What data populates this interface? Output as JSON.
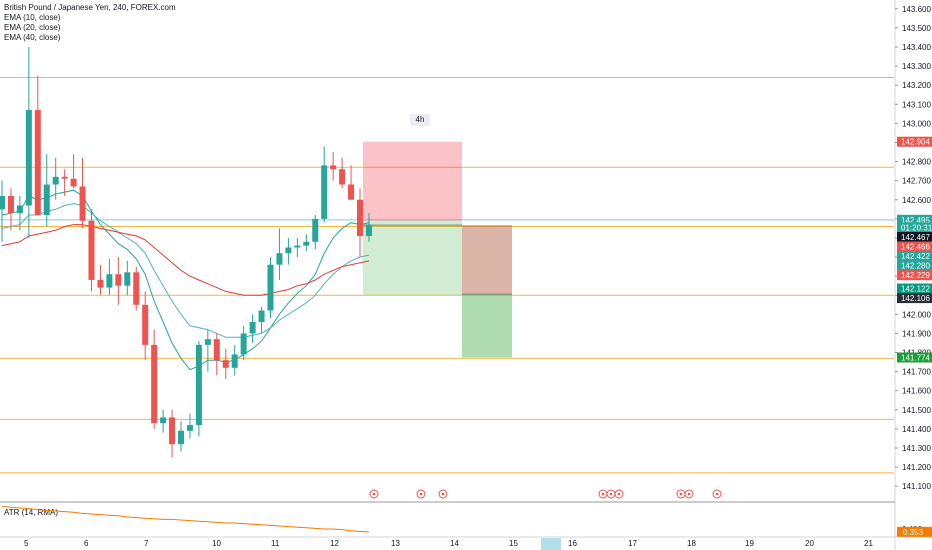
{
  "legend": {
    "title": "British Pound / Japanese Yen, 240, FOREX.com",
    "ema10": "EMA (10, close)",
    "ema20": "EMA (20, close)",
    "ema40": "EMA (40, close)"
  },
  "atr_label": "ATR (14, RMA)",
  "timeframe_badge": "4h",
  "colors": {
    "up": "#26a69a",
    "down": "#ef5350",
    "ema_fast": "#26a69a",
    "ema_slow": "#e53935",
    "hline": "#f6b73c",
    "atr": "#f57c00"
  },
  "chart_data": {
    "type": "candlestick",
    "symbol": "GBPJPY",
    "interval": "240",
    "ylim": [
      141.08,
      143.62
    ],
    "price_ticks": [
      "143.600",
      "143.500",
      "143.400",
      "143.300",
      "143.200",
      "143.100",
      "143.000",
      "142.900",
      "142.800",
      "142.700",
      "142.600",
      "142.500",
      "142.400",
      "142.300",
      "142.200",
      "142.100",
      "142.000",
      "141.900",
      "141.800",
      "141.700",
      "141.600",
      "141.500",
      "141.400",
      "141.300",
      "141.200",
      "141.100"
    ],
    "time_ticks": [
      "5",
      "6",
      "7",
      "10",
      "11",
      "12",
      "13",
      "14",
      "15",
      "16",
      "17",
      "18",
      "19",
      "20",
      "21"
    ],
    "candles": [
      {
        "o": 142.55,
        "h": 142.7,
        "l": 142.38,
        "c": 142.62
      },
      {
        "o": 142.62,
        "h": 142.66,
        "l": 142.44,
        "c": 142.53
      },
      {
        "o": 142.53,
        "h": 142.62,
        "l": 142.44,
        "c": 142.57
      },
      {
        "o": 142.57,
        "h": 143.4,
        "l": 142.4,
        "c": 143.07
      },
      {
        "o": 143.07,
        "h": 143.25,
        "l": 142.52,
        "c": 142.52
      },
      {
        "o": 142.52,
        "h": 142.84,
        "l": 142.46,
        "c": 142.68
      },
      {
        "o": 142.68,
        "h": 142.82,
        "l": 142.6,
        "c": 142.72
      },
      {
        "o": 142.72,
        "h": 142.76,
        "l": 142.62,
        "c": 142.71
      },
      {
        "o": 142.71,
        "h": 142.84,
        "l": 142.66,
        "c": 142.67
      },
      {
        "o": 142.67,
        "h": 142.82,
        "l": 142.45,
        "c": 142.49
      },
      {
        "o": 142.49,
        "h": 142.55,
        "l": 142.12,
        "c": 142.18
      },
      {
        "o": 142.18,
        "h": 142.26,
        "l": 142.1,
        "c": 142.14
      },
      {
        "o": 142.14,
        "h": 142.29,
        "l": 142.1,
        "c": 142.21
      },
      {
        "o": 142.21,
        "h": 142.3,
        "l": 142.05,
        "c": 142.15
      },
      {
        "o": 142.15,
        "h": 142.28,
        "l": 142.1,
        "c": 142.22
      },
      {
        "o": 142.22,
        "h": 142.25,
        "l": 142.02,
        "c": 142.05
      },
      {
        "o": 142.05,
        "h": 142.12,
        "l": 141.76,
        "c": 141.84
      },
      {
        "o": 141.84,
        "h": 141.92,
        "l": 141.4,
        "c": 141.43
      },
      {
        "o": 141.43,
        "h": 141.5,
        "l": 141.38,
        "c": 141.46
      },
      {
        "o": 141.46,
        "h": 141.5,
        "l": 141.25,
        "c": 141.32
      },
      {
        "o": 141.32,
        "h": 141.44,
        "l": 141.28,
        "c": 141.39
      },
      {
        "o": 141.39,
        "h": 141.48,
        "l": 141.35,
        "c": 141.42
      },
      {
        "o": 141.42,
        "h": 141.86,
        "l": 141.36,
        "c": 141.84
      },
      {
        "o": 141.84,
        "h": 141.92,
        "l": 141.7,
        "c": 141.87
      },
      {
        "o": 141.87,
        "h": 141.9,
        "l": 141.68,
        "c": 141.76
      },
      {
        "o": 141.76,
        "h": 141.82,
        "l": 141.66,
        "c": 141.72
      },
      {
        "o": 141.72,
        "h": 141.84,
        "l": 141.68,
        "c": 141.79
      },
      {
        "o": 141.79,
        "h": 141.94,
        "l": 141.76,
        "c": 141.9
      },
      {
        "o": 141.9,
        "h": 142.0,
        "l": 141.85,
        "c": 141.96
      },
      {
        "o": 141.96,
        "h": 142.04,
        "l": 141.9,
        "c": 142.02
      },
      {
        "o": 142.02,
        "h": 142.3,
        "l": 141.98,
        "c": 142.26
      },
      {
        "o": 142.26,
        "h": 142.45,
        "l": 142.18,
        "c": 142.32
      },
      {
        "o": 142.32,
        "h": 142.4,
        "l": 142.26,
        "c": 142.35
      },
      {
        "o": 142.35,
        "h": 142.4,
        "l": 142.3,
        "c": 142.36
      },
      {
        "o": 142.36,
        "h": 142.42,
        "l": 142.33,
        "c": 142.38
      },
      {
        "o": 142.38,
        "h": 142.52,
        "l": 142.34,
        "c": 142.5
      },
      {
        "o": 142.5,
        "h": 142.88,
        "l": 142.48,
        "c": 142.78
      },
      {
        "o": 142.78,
        "h": 142.85,
        "l": 142.7,
        "c": 142.76
      },
      {
        "o": 142.76,
        "h": 142.82,
        "l": 142.66,
        "c": 142.68
      },
      {
        "o": 142.68,
        "h": 142.78,
        "l": 142.62,
        "c": 142.6
      },
      {
        "o": 142.6,
        "h": 142.66,
        "l": 142.3,
        "c": 142.41
      },
      {
        "o": 142.41,
        "h": 142.53,
        "l": 142.38,
        "c": 142.47
      }
    ],
    "ema10": [
      142.52,
      142.53,
      142.54,
      142.62,
      142.6,
      142.61,
      142.63,
      142.64,
      142.65,
      142.62,
      142.54,
      142.47,
      142.42,
      142.37,
      142.34,
      142.29,
      142.21,
      142.07,
      141.96,
      141.85,
      141.77,
      141.71,
      141.73,
      141.76,
      141.76,
      141.75,
      141.76,
      141.79,
      141.82,
      141.86,
      141.93,
      142.0,
      142.06,
      142.11,
      142.15,
      142.21,
      142.32,
      142.4,
      142.45,
      142.48,
      142.47,
      142.48
    ],
    "ema20": [
      142.45,
      142.46,
      142.47,
      142.52,
      142.52,
      142.54,
      142.55,
      142.57,
      142.58,
      142.57,
      142.53,
      142.49,
      142.46,
      142.43,
      142.4,
      142.37,
      142.32,
      142.23,
      142.15,
      142.07,
      142.0,
      141.94,
      141.93,
      141.92,
      141.9,
      141.88,
      141.88,
      141.88,
      141.89,
      141.9,
      141.93,
      141.97,
      142.0,
      142.03,
      142.06,
      142.1,
      142.16,
      142.21,
      142.25,
      142.28,
      142.3,
      142.31
    ],
    "ema40": [
      142.36,
      142.37,
      142.38,
      142.41,
      142.42,
      142.43,
      142.44,
      142.46,
      142.47,
      142.47,
      142.46,
      142.45,
      142.44,
      142.43,
      142.42,
      142.41,
      142.39,
      142.35,
      142.31,
      142.27,
      142.23,
      142.2,
      142.18,
      142.16,
      142.14,
      142.12,
      142.11,
      142.1,
      142.1,
      142.1,
      142.11,
      142.12,
      142.13,
      142.15,
      142.16,
      142.18,
      142.21,
      142.23,
      142.25,
      142.26,
      142.27,
      142.28
    ],
    "horizontal_levels": [
      143.24,
      142.77,
      142.46,
      142.1,
      141.77,
      141.45,
      141.17
    ],
    "positions": [
      {
        "side": "short",
        "entry": 142.49,
        "stop": 142.904,
        "target": 142.1
      },
      {
        "side": "short",
        "entry": 142.467,
        "stop": 142.467,
        "target": 141.774
      }
    ],
    "price_tags": [
      {
        "value": "142.904",
        "price": 142.904,
        "color": "#ef5350"
      },
      {
        "value": "142.495",
        "price": 142.495,
        "color": "#26a69a"
      },
      {
        "value": "01:20:31",
        "price": 142.455,
        "color": "#26a69a"
      },
      {
        "value": "142.467",
        "price": 142.405,
        "color": "#131722"
      },
      {
        "value": "142.466",
        "price": 142.355,
        "color": "#ef5350"
      },
      {
        "value": "142.422",
        "price": 142.305,
        "color": "#26a69a"
      },
      {
        "value": "142.280",
        "price": 142.255,
        "color": "#26a69a"
      },
      {
        "value": "142.229",
        "price": 142.205,
        "color": "#ef5350"
      },
      {
        "value": "142.122",
        "price": 142.135,
        "color": "#089981"
      },
      {
        "value": "142.106",
        "price": 142.085,
        "color": "#2a2e39"
      },
      {
        "value": "141.774",
        "price": 141.774,
        "color": "#1e9e3a"
      }
    ],
    "atr_values": [
      0.78,
      0.76,
      0.75,
      0.74,
      0.72,
      0.71,
      0.7,
      0.69,
      0.68,
      0.66,
      0.65,
      0.64,
      0.63,
      0.62,
      0.6,
      0.59,
      0.58,
      0.57,
      0.56,
      0.56,
      0.55,
      0.54,
      0.53,
      0.52,
      0.51,
      0.5,
      0.5,
      0.49,
      0.48,
      0.47,
      0.46,
      0.45,
      0.44,
      0.43,
      0.42,
      0.41,
      0.4,
      0.4,
      0.39,
      0.37,
      0.36,
      0.35
    ],
    "atr_ticks": [
      "0.400"
    ],
    "atr_tag": "0.353"
  }
}
